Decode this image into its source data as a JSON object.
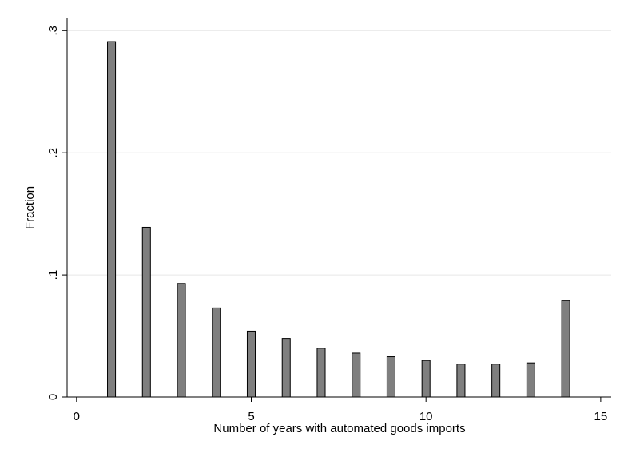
{
  "chart_data": {
    "type": "bar",
    "x_label": "Number of years with automated goods imports",
    "y_label": "Fraction",
    "x": [
      1,
      2,
      3,
      4,
      5,
      6,
      7,
      8,
      9,
      10,
      11,
      12,
      13,
      14
    ],
    "values": [
      0.291,
      0.139,
      0.093,
      0.073,
      0.054,
      0.048,
      0.04,
      0.036,
      0.033,
      0.03,
      0.027,
      0.027,
      0.028,
      0.079
    ],
    "color": "#7f7f7f",
    "xlim": [
      -0.27,
      15.3
    ],
    "xticks": [
      0,
      5,
      10,
      15
    ],
    "ylim": [
      0,
      0.31
    ],
    "yticks": [
      0,
      {
        "value": 0.1,
        "label": ".1"
      },
      {
        "value": 0.2,
        "label": ".2"
      },
      {
        "value": 0.3,
        "label": ".3"
      }
    ],
    "grid": true
  }
}
